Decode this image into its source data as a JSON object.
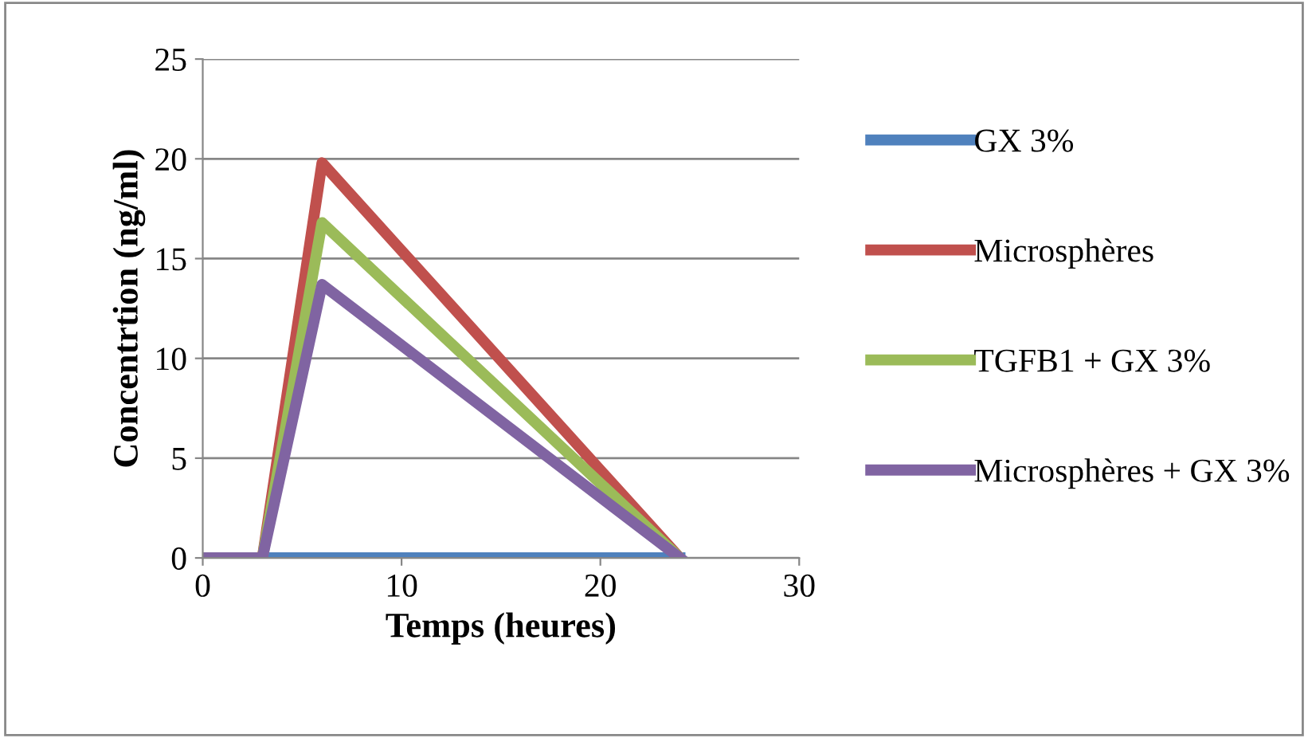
{
  "chart_data": {
    "type": "line",
    "xlabel": "Temps (heures)",
    "ylabel": "Concentrtion (ng/ml)",
    "x": [
      0,
      3,
      6,
      24
    ],
    "series": [
      {
        "name": "GX 3%",
        "color": "#4f81bd",
        "values": [
          0,
          0,
          0,
          0
        ]
      },
      {
        "name": "Microsphères",
        "color": "#c0504d",
        "values": [
          0,
          0,
          19.8,
          0
        ]
      },
      {
        "name": "TGFB1 + GX 3%",
        "color": "#9bbb59",
        "values": [
          0,
          0,
          16.8,
          0
        ]
      },
      {
        "name": "Microsphères + GX 3%",
        "color": "#8064a2",
        "values": [
          0,
          0,
          13.7,
          0
        ]
      }
    ],
    "xlim": [
      0,
      30
    ],
    "xticks": [
      0,
      10,
      20,
      30
    ],
    "ylim": [
      0,
      25
    ],
    "yticks": [
      0,
      5,
      10,
      15,
      20,
      25
    ],
    "grid": "y",
    "legend": "right",
    "marker": "none",
    "line_style": "solid"
  }
}
